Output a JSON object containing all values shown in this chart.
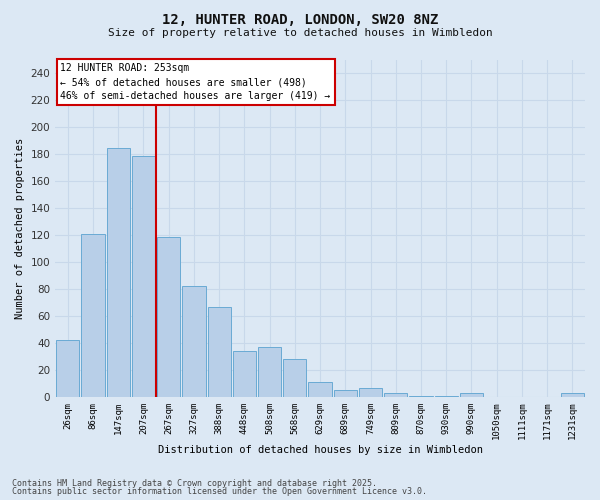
{
  "title_line1": "12, HUNTER ROAD, LONDON, SW20 8NZ",
  "title_line2": "Size of property relative to detached houses in Wimbledon",
  "xlabel": "Distribution of detached houses by size in Wimbledon",
  "ylabel": "Number of detached properties",
  "bar_labels": [
    "26sqm",
    "86sqm",
    "147sqm",
    "207sqm",
    "267sqm",
    "327sqm",
    "388sqm",
    "448sqm",
    "508sqm",
    "568sqm",
    "629sqm",
    "689sqm",
    "749sqm",
    "809sqm",
    "870sqm",
    "930sqm",
    "990sqm",
    "1050sqm",
    "1111sqm",
    "1171sqm",
    "1231sqm"
  ],
  "bar_values": [
    42,
    121,
    185,
    179,
    119,
    82,
    67,
    34,
    37,
    28,
    11,
    5,
    7,
    3,
    1,
    1,
    3,
    0,
    0,
    0,
    3
  ],
  "bar_color": "#b8cfe8",
  "bar_edge_color": "#6aaad4",
  "subject_line_color": "#cc0000",
  "annotation_text": "12 HUNTER ROAD: 253sqm\n← 54% of detached houses are smaller (498)\n46% of semi-detached houses are larger (419) →",
  "annotation_box_color": "#ffffff",
  "annotation_border_color": "#cc0000",
  "ylim": [
    0,
    250
  ],
  "yticks": [
    0,
    20,
    40,
    60,
    80,
    100,
    120,
    140,
    160,
    180,
    200,
    220,
    240
  ],
  "grid_color": "#c8d8ea",
  "background_color": "#dce8f4",
  "footer_line1": "Contains HM Land Registry data © Crown copyright and database right 2025.",
  "footer_line2": "Contains public sector information licensed under the Open Government Licence v3.0."
}
